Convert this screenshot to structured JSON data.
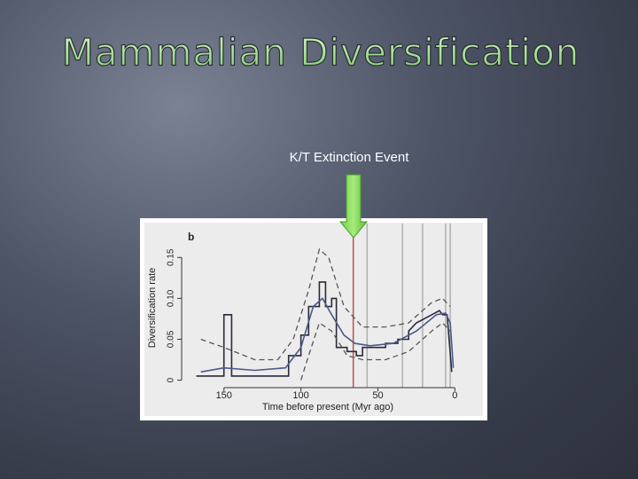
{
  "slide": {
    "title": "Mammalian Diversification",
    "annotation": "K/T Extinction Event"
  },
  "chart_data": {
    "type": "line",
    "panel_label": "b",
    "x_label": "Time before present (Myr ago)",
    "y_label": "Diversification rate",
    "xlim": [
      170,
      -5
    ],
    "ylim": [
      -0.007,
      0.185
    ],
    "xticks": [
      150,
      100,
      50,
      0
    ],
    "yticks": [
      0,
      0.05,
      {
        "value": 0.1,
        "label": "0.10"
      },
      0.15
    ],
    "vlines": [
      {
        "x": 66,
        "color": "#c0504d"
      },
      {
        "x": 57,
        "color": "#b0b0b0"
      },
      {
        "x": 34,
        "color": "#b0b0b0"
      },
      {
        "x": 21,
        "color": "#b0b0b0"
      },
      {
        "x": 6,
        "color": "#b0b0b0"
      },
      {
        "x": 3,
        "color": "#b0b0b0"
      }
    ],
    "series": [
      {
        "color": "#2a2a3a",
        "dashed": false,
        "x": [
          168,
          150,
          150,
          145,
          145,
          108,
          108,
          100,
          100,
          95,
          95,
          88,
          88,
          84,
          84,
          80,
          80,
          77,
          77,
          70,
          70,
          64,
          64,
          60,
          60,
          45,
          45,
          37,
          37,
          30,
          30,
          25,
          15,
          10,
          8,
          5,
          2
        ],
        "values": [
          0.005,
          0.005,
          0.08,
          0.08,
          0.005,
          0.005,
          0.03,
          0.03,
          0.055,
          0.055,
          0.09,
          0.09,
          0.12,
          0.12,
          0.09,
          0.09,
          0.1,
          0.1,
          0.04,
          0.04,
          0.035,
          0.035,
          0.03,
          0.03,
          0.04,
          0.04,
          0.045,
          0.045,
          0.05,
          0.05,
          0.06,
          0.07,
          0.08,
          0.085,
          0.08,
          0.08,
          0.01
        ]
      },
      {
        "color": "#4a5a8a",
        "dashed": false,
        "x": [
          165,
          150,
          130,
          110,
          100,
          92,
          86,
          80,
          72,
          65,
          55,
          40,
          25,
          12,
          6,
          3,
          1
        ],
        "values": [
          0.01,
          0.015,
          0.012,
          0.015,
          0.04,
          0.09,
          0.1,
          0.08,
          0.055,
          0.045,
          0.042,
          0.045,
          0.06,
          0.08,
          0.082,
          0.07,
          0.015
        ]
      },
      {
        "color": "#555555",
        "dashed": true,
        "x": [
          165,
          150,
          130,
          115,
          105,
          95,
          88,
          82,
          72,
          60,
          45,
          30,
          15,
          8,
          3
        ],
        "values": [
          0.05,
          0.04,
          0.025,
          0.025,
          0.05,
          0.11,
          0.16,
          0.15,
          0.09,
          0.065,
          0.065,
          0.07,
          0.095,
          0.1,
          0.09
        ]
      },
      {
        "color": "#555555",
        "dashed": true,
        "x": [
          100,
          95,
          88,
          80,
          70,
          60,
          45,
          30,
          15,
          8,
          3
        ],
        "values": [
          0.0,
          0.03,
          0.07,
          0.06,
          0.03,
          0.025,
          0.025,
          0.035,
          0.06,
          0.07,
          0.06
        ]
      }
    ]
  }
}
